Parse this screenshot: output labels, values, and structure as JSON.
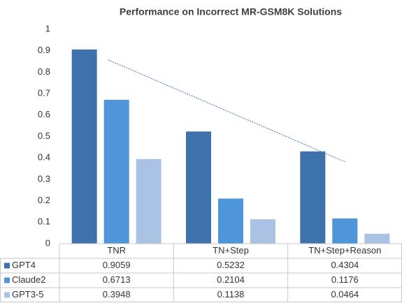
{
  "chart_data": {
    "type": "bar",
    "title": "Performance on Incorrect MR-GSM8K Solutions",
    "categories": [
      "TNR",
      "TN+Step",
      "TN+Step+Reason"
    ],
    "series": [
      {
        "name": "GPT4",
        "color": "#3d72ad",
        "values": [
          0.9059,
          0.5232,
          0.4304
        ],
        "trendline": "linear"
      },
      {
        "name": "Claude2",
        "color": "#4e95d9",
        "values": [
          0.6713,
          0.2104,
          0.1176
        ]
      },
      {
        "name": "GPT3-5",
        "color": "#aac3e4",
        "values": [
          0.3948,
          0.1138,
          0.0464
        ]
      }
    ],
    "ylim": [
      0,
      1
    ],
    "yticks": [
      0,
      0.1,
      0.2,
      0.3,
      0.4,
      0.5,
      0.6,
      0.7,
      0.8,
      0.9,
      1
    ],
    "data_table": true
  }
}
